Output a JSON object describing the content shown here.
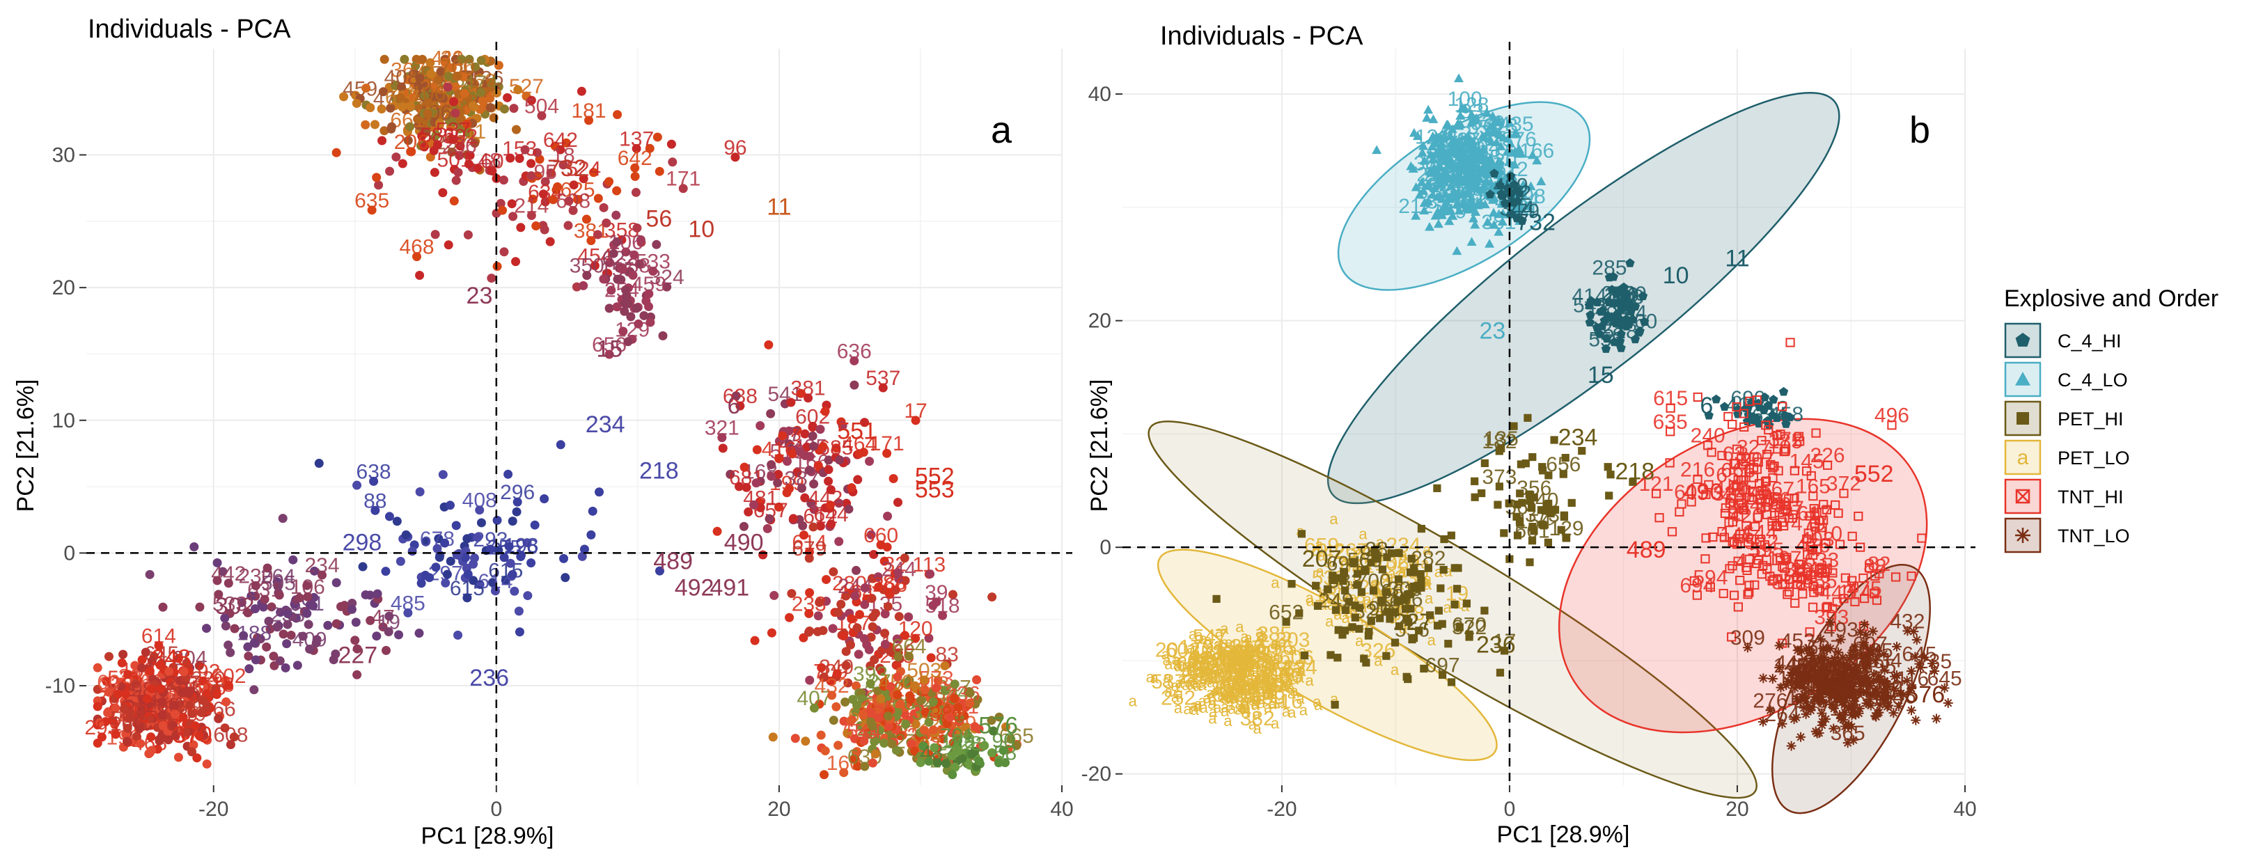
{
  "chart_data": [
    {
      "type": "scatter",
      "title": "Individuals - PCA",
      "panel_label": "a",
      "xlabel": "PC1 [28.9%]",
      "ylabel": "PC2 [21.6%]",
      "xlim": [
        -29,
        40
      ],
      "ylim": [
        -17.5,
        38
      ],
      "xticks": [
        -20,
        0,
        20,
        40
      ],
      "yticks": [
        -10,
        0,
        10,
        20,
        30
      ],
      "tick_labels_x": [
        "-20",
        "0",
        "20",
        "40"
      ],
      "tick_labels_y": [
        "-10",
        "0",
        "10",
        "20",
        "30"
      ],
      "grid": true,
      "reference_lines": {
        "x": 0,
        "y": 0,
        "style": "dashed"
      },
      "color_scale": [
        "#d7301f",
        "#8e3a59",
        "#3b3f9f",
        "#4a86a8",
        "#c46a1e",
        "#5a8f3c"
      ],
      "clusters": [
        {
          "name": "top-cluster",
          "center": [
            -4,
            34
          ],
          "spread": [
            2.2,
            1.6
          ],
          "n": 260,
          "colors": [
            "#b5651d",
            "#c8781f",
            "#8d7a2a",
            "#d2691e",
            "#a0522d"
          ]
        },
        {
          "name": "top-mid",
          "center": [
            2,
            28
          ],
          "spread": [
            5,
            3
          ],
          "n": 120,
          "colors": [
            "#c62828",
            "#b23a48",
            "#d84315"
          ]
        },
        {
          "name": "mid-right-upper",
          "center": [
            9.5,
            20.5
          ],
          "spread": [
            1.2,
            2.2
          ],
          "n": 50,
          "colors": [
            "#a23b5a",
            "#8e3a59"
          ]
        },
        {
          "name": "blue-mid",
          "center": [
            -1,
            0
          ],
          "spread": [
            4.5,
            3
          ],
          "n": 90,
          "colors": [
            "#3b3f9f",
            "#4b4aa8",
            "#2f3a8f"
          ]
        },
        {
          "name": "purple-left",
          "center": [
            -15,
            -5
          ],
          "spread": [
            3.5,
            2.2
          ],
          "n": 110,
          "colors": [
            "#6a3d7a",
            "#7b3f6e",
            "#8e3a59"
          ]
        },
        {
          "name": "red-left",
          "center": [
            -24,
            -11.5
          ],
          "spread": [
            2.2,
            1.8
          ],
          "n": 260,
          "colors": [
            "#d7301f",
            "#e34a33",
            "#c0392b",
            "#b7332e"
          ]
        },
        {
          "name": "right-upper",
          "center": [
            22,
            6
          ],
          "spread": [
            3,
            3.5
          ],
          "n": 120,
          "colors": [
            "#a23b5a",
            "#c62828",
            "#8e3a59",
            "#d7301f"
          ]
        },
        {
          "name": "right-mid",
          "center": [
            26,
            -5
          ],
          "spread": [
            3,
            2.5
          ],
          "n": 110,
          "colors": [
            "#d7301f",
            "#c0392b",
            "#a23b5a"
          ]
        },
        {
          "name": "bottom-right",
          "center": [
            29,
            -12.5
          ],
          "spread": [
            3,
            1.8
          ],
          "n": 260,
          "colors": [
            "#e0592a",
            "#c8781f",
            "#8d7a2a",
            "#7a8c35",
            "#d84315",
            "#e34a33"
          ]
        },
        {
          "name": "green-tail",
          "center": [
            33,
            -15.5
          ],
          "spread": [
            1.5,
            0.6
          ],
          "n": 40,
          "colors": [
            "#5a8f3c",
            "#4f7d35",
            "#6b9a40"
          ]
        }
      ],
      "annotations": [
        {
          "text": "11",
          "x": 20,
          "y": 25.5,
          "color": "#c8581e"
        },
        {
          "text": "10",
          "x": 14.5,
          "y": 23.8,
          "color": "#c0392b"
        },
        {
          "text": "56",
          "x": 11.5,
          "y": 24.6,
          "color": "#c0392b"
        },
        {
          "text": "732",
          "x": 5,
          "y": 28.4,
          "color": "#c0392b"
        },
        {
          "text": "23",
          "x": -1.2,
          "y": 18.8,
          "color": "#8e3a59"
        },
        {
          "text": "15",
          "x": 8,
          "y": 14.8,
          "color": "#8e3a59"
        },
        {
          "text": "234",
          "x": 7.7,
          "y": 9.1,
          "color": "#4b4aa8"
        },
        {
          "text": "218",
          "x": 11.5,
          "y": 5.6,
          "color": "#4b4aa8"
        },
        {
          "text": "298",
          "x": -9.5,
          "y": 0.2,
          "color": "#4b4aa8"
        },
        {
          "text": "489",
          "x": 12.5,
          "y": -1.2,
          "color": "#8e3a59"
        },
        {
          "text": "490",
          "x": 17.5,
          "y": 0.2,
          "color": "#8e3a59"
        },
        {
          "text": "491",
          "x": 16.5,
          "y": -3.2,
          "color": "#8e3a59"
        },
        {
          "text": "492",
          "x": 14,
          "y": -3.2,
          "color": "#8e3a59"
        },
        {
          "text": "302",
          "x": -18.5,
          "y": -4.6,
          "color": "#8e3a59"
        },
        {
          "text": "227",
          "x": -9.8,
          "y": -8.3,
          "color": "#8e3a59"
        },
        {
          "text": "236",
          "x": -0.5,
          "y": -10,
          "color": "#4b4aa8"
        },
        {
          "text": "552",
          "x": 31,
          "y": 5.2,
          "color": "#d7301f"
        },
        {
          "text": "553",
          "x": 31,
          "y": 4.2,
          "color": "#d7301f"
        },
        {
          "text": "551",
          "x": 25.5,
          "y": 8.6,
          "color": "#d7301f"
        },
        {
          "text": "6",
          "x": 16.8,
          "y": 10.5,
          "color": "#8e3a59"
        },
        {
          "text": "348",
          "x": -23,
          "y": -8.5,
          "color": "#d7301f"
        },
        {
          "text": "370",
          "x": -21.5,
          "y": -14.3,
          "color": "#d7301f"
        },
        {
          "text": "576",
          "x": 35.5,
          "y": -13.6,
          "color": "#5a8f3c"
        }
      ]
    },
    {
      "type": "scatter",
      "title": "Individuals - PCA",
      "panel_label": "b",
      "xlabel": "PC1 [28.9%]",
      "ylabel": "PC2 [21.6%]",
      "xlim": [
        -34,
        40
      ],
      "ylim": [
        -21,
        44
      ],
      "xticks": [
        -20,
        0,
        20,
        40
      ],
      "yticks": [
        -20,
        0,
        20,
        40
      ],
      "tick_labels_x": [
        "-20",
        "0",
        "20",
        "40"
      ],
      "tick_labels_y": [
        "-20",
        "0",
        "20",
        "40"
      ],
      "grid": true,
      "reference_lines": {
        "x": 0,
        "y": 0,
        "style": "dashed"
      },
      "legend": {
        "title": "Explosive and Order",
        "placement": "right",
        "entries": [
          {
            "label": "C_4_HI",
            "color": "#1f5f6b",
            "shape": "pentagon"
          },
          {
            "label": "C_4_LO",
            "color": "#4aaec4",
            "shape": "triangle"
          },
          {
            "label": "PET_HI",
            "color": "#6b5a17",
            "shape": "square"
          },
          {
            "label": "PET_LO",
            "color": "#e3b73a",
            "shape": "text-a"
          },
          {
            "label": "TNT_HI",
            "color": "#e8342a",
            "shape": "square-x"
          },
          {
            "label": "TNT_LO",
            "color": "#7a2e13",
            "shape": "asterisk"
          }
        ]
      },
      "ellipses": [
        {
          "group": "C_4_HI",
          "center": [
            6.5,
            22
          ],
          "rx": 28,
          "ry": 6.7,
          "angle": -38,
          "fill": "#1f5f6b",
          "stroke": "#1f5f6b"
        },
        {
          "group": "C_4_LO",
          "center": [
            -4,
            31
          ],
          "rx": 12.5,
          "ry": 5.8,
          "angle": -32,
          "fill": "#4aaec4",
          "stroke": "#4aaec4"
        },
        {
          "group": "PET_HI",
          "center": [
            -5,
            -5.5
          ],
          "rx": 31,
          "ry": 5,
          "angle": 31,
          "fill": "#b9a67a",
          "stroke": "#6b5a17"
        },
        {
          "group": "PET_LO",
          "center": [
            -16,
            -9.5
          ],
          "rx": 17,
          "ry": 4.2,
          "angle": 30,
          "fill": "#e3b73a",
          "stroke": "#e3b73a"
        },
        {
          "group": "TNT_HI",
          "center": [
            20.5,
            -2.5
          ],
          "rx": 17.5,
          "ry": 12,
          "angle": -32,
          "fill": "#e8342a",
          "stroke": "#e8342a"
        },
        {
          "group": "TNT_LO",
          "center": [
            30,
            -12.5
          ],
          "rx": 12,
          "ry": 4.8,
          "angle": -63,
          "fill": "#8a6a5a",
          "stroke": "#7a2e13"
        }
      ],
      "clusters": [
        {
          "group": "C_4_LO",
          "center": [
            -3.5,
            33
          ],
          "spread": [
            2.4,
            2.6
          ],
          "n": 320,
          "color": "#4aaec4",
          "shape": "triangle"
        },
        {
          "group": "C_4_HI",
          "center": [
            9.5,
            21
          ],
          "spread": [
            1.1,
            1.6
          ],
          "n": 60,
          "color": "#1f5f6b",
          "shape": "pentagon"
        },
        {
          "group": "C_4_HI",
          "center": [
            0,
            31
          ],
          "spread": [
            0.8,
            1
          ],
          "n": 20,
          "color": "#1f5f6b",
          "shape": "pentagon"
        },
        {
          "group": "C_4_HI",
          "center": [
            22,
            12
          ],
          "spread": [
            2,
            0.8
          ],
          "n": 30,
          "color": "#1f5f6b",
          "shape": "pentagon"
        },
        {
          "group": "PET_LO",
          "center": [
            -24,
            -11.5
          ],
          "spread": [
            2.8,
            1.8
          ],
          "n": 300,
          "color": "#e3b73a",
          "shape": "text-a"
        },
        {
          "group": "PET_LO",
          "center": [
            -12,
            -4
          ],
          "spread": [
            3.5,
            2.2
          ],
          "n": 90,
          "color": "#e3b73a",
          "shape": "text-a"
        },
        {
          "group": "PET_HI",
          "center": [
            -10,
            -5.5
          ],
          "spread": [
            5,
            3.2
          ],
          "n": 110,
          "color": "#6b5a17",
          "shape": "square"
        },
        {
          "group": "PET_HI",
          "center": [
            3,
            4
          ],
          "spread": [
            3.5,
            2.5
          ],
          "n": 60,
          "color": "#6b5a17",
          "shape": "square"
        },
        {
          "group": "TNT_HI",
          "center": [
            22,
            4
          ],
          "spread": [
            3.5,
            4
          ],
          "n": 170,
          "color": "#e8342a",
          "shape": "square-x"
        },
        {
          "group": "TNT_HI",
          "center": [
            27,
            -3
          ],
          "spread": [
            3.5,
            2.5
          ],
          "n": 80,
          "color": "#e8342a",
          "shape": "square-x"
        },
        {
          "group": "TNT_LO",
          "center": [
            29.5,
            -12
          ],
          "spread": [
            3,
            2.2
          ],
          "n": 300,
          "color": "#7a2e13",
          "shape": "asterisk"
        }
      ],
      "annotations": [
        {
          "text": "11",
          "x": 20,
          "y": 24.8,
          "color": "#1f5f6b"
        },
        {
          "text": "10",
          "x": 14.6,
          "y": 23.3,
          "color": "#1f5f6b"
        },
        {
          "text": "732",
          "x": 2.3,
          "y": 28,
          "color": "#1f5f6b"
        },
        {
          "text": "23",
          "x": -1.5,
          "y": 18.4,
          "color": "#4aaec4"
        },
        {
          "text": "15",
          "x": 8,
          "y": 14.5,
          "color": "#1f5f6b"
        },
        {
          "text": "234",
          "x": 6,
          "y": 9,
          "color": "#6b5a17"
        },
        {
          "text": "218",
          "x": 11,
          "y": 6,
          "color": "#6b5a17"
        },
        {
          "text": "236",
          "x": -1.2,
          "y": -9.3,
          "color": "#6b5a17"
        },
        {
          "text": "227",
          "x": -8.5,
          "y": -7.3,
          "color": "#6b5a17"
        },
        {
          "text": "207",
          "x": -16.5,
          "y": -1.7,
          "color": "#6b5a17"
        },
        {
          "text": "489",
          "x": 12,
          "y": -0.9,
          "color": "#e8342a"
        },
        {
          "text": "490",
          "x": 17,
          "y": 4.2,
          "color": "#e8342a"
        },
        {
          "text": "552",
          "x": 32,
          "y": 5.8,
          "color": "#e8342a"
        },
        {
          "text": "6",
          "x": 17.3,
          "y": 11.8,
          "color": "#1f5f6b"
        },
        {
          "text": "576",
          "x": 36.5,
          "y": -13.7,
          "color": "#7a2e13"
        }
      ]
    }
  ]
}
